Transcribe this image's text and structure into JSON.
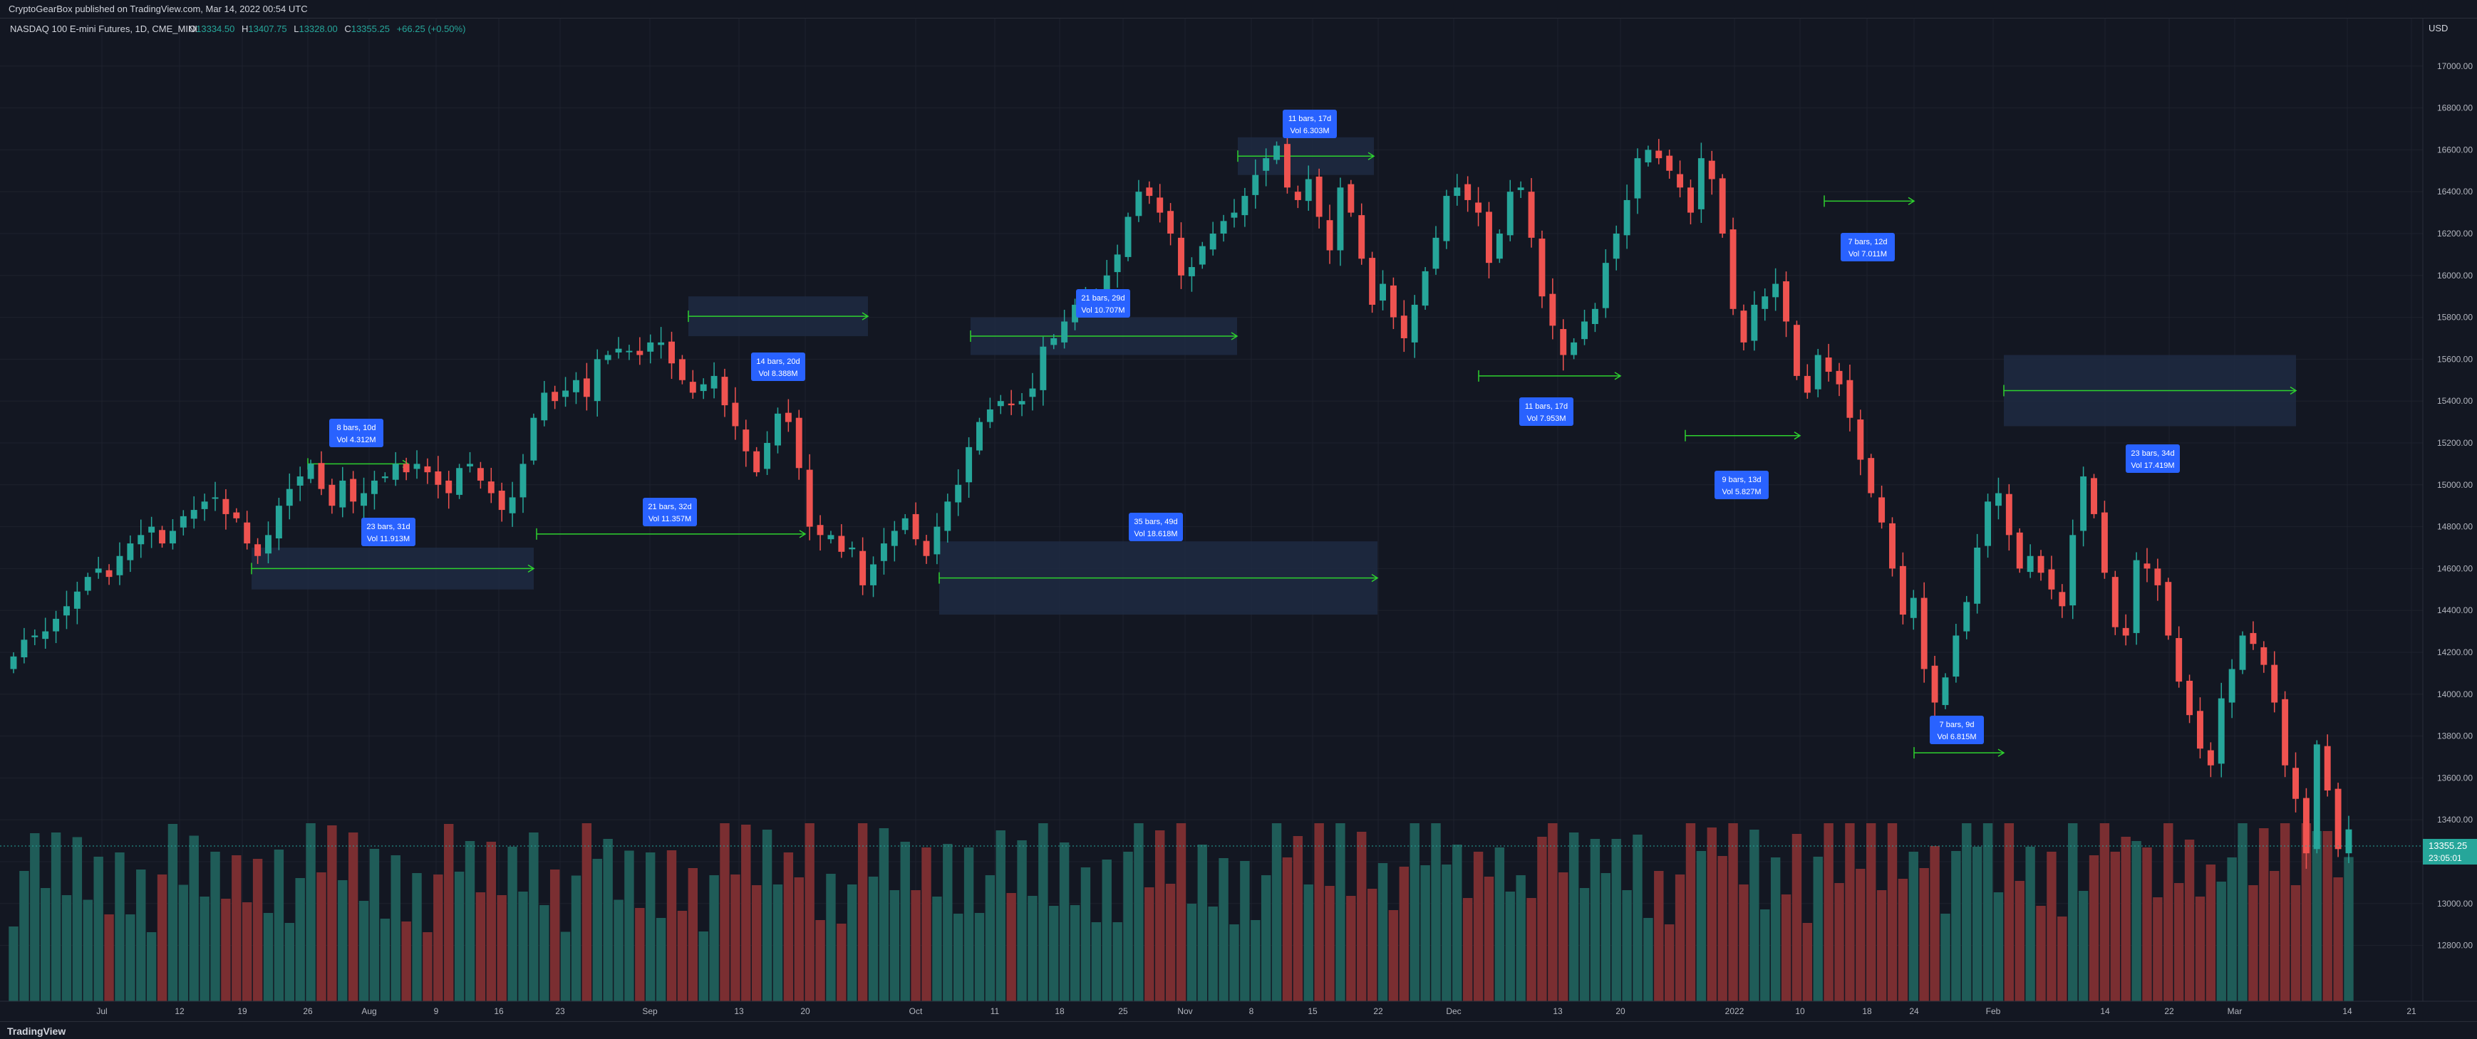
{
  "publisher_line": "CryptoGearBox published on TradingView.com, Mar 14, 2022 00:54 UTC",
  "footer": {
    "brand": "TradingView",
    "brand_icon": "tradingview-logo-icon"
  },
  "colors": {
    "background": "#131722",
    "up": "#26a69a",
    "down": "#ef5350",
    "vol_up": "#1f5c58",
    "vol_down": "#7a2e31",
    "measure_box": "#1e2a42",
    "measure_line": "#2ed12e",
    "label_bg": "#2962ff"
  },
  "chart_data": {
    "type": "candlestick",
    "title": "NASDAQ 100 E-mini Futures, 1D, CME_MINI",
    "ohlc_legend": {
      "o_label": "O",
      "o": "13334.50",
      "h_label": "H",
      "h": "13407.75",
      "l_label": "L",
      "l": "13328.00",
      "c_label": "C",
      "c": "13355.25",
      "change": "+66.25 (+0.50%)"
    },
    "price_axis": {
      "currency": "USD",
      "ylim": [
        12540,
        17200
      ],
      "ticks": [
        "12800.00",
        "13000.00",
        "13200.00",
        "13400.00",
        "13600.00",
        "13800.00",
        "14000.00",
        "14200.00",
        "14400.00",
        "14600.00",
        "14800.00",
        "15000.00",
        "15200.00",
        "15400.00",
        "15600.00",
        "15800.00",
        "16000.00",
        "16200.00",
        "16400.00",
        "16600.00",
        "16800.00",
        "17000.00"
      ],
      "last_price": "13355.25",
      "countdown": "23:05:01"
    },
    "time_axis": {
      "ticks": [
        "Jul",
        "12",
        "19",
        "26",
        "Aug",
        "9",
        "16",
        "23",
        "Sep",
        "13",
        "20",
        "Oct",
        "11",
        "18",
        "25",
        "Nov",
        "8",
        "15",
        "22",
        "Dec",
        "13",
        "20",
        "2022",
        "10",
        "18",
        "24",
        "Feb",
        "14",
        "22",
        "Mar",
        "14",
        "21"
      ]
    },
    "closes": [
      14180,
      14260,
      14280,
      14300,
      14360,
      14420,
      14490,
      14560,
      14600,
      14560,
      14660,
      14720,
      14760,
      14800,
      14720,
      14780,
      14850,
      14880,
      14920,
      14940,
      14860,
      14840,
      14720,
      14660,
      14760,
      14900,
      14980,
      15040,
      15100,
      14980,
      14900,
      15020,
      14920,
      14960,
      15020,
      15040,
      15100,
      15060,
      15100,
      15060,
      15000,
      14960,
      15080,
      15100,
      15020,
      14960,
      14880,
      14940,
      15100,
      15320,
      15440,
      15400,
      15450,
      15500,
      15420,
      15600,
      15620,
      15650,
      15640,
      15620,
      15680,
      15680,
      15580,
      15500,
      15440,
      15480,
      15520,
      15380,
      15280,
      15160,
      15060,
      15200,
      15340,
      15300,
      15080,
      14800,
      14760,
      14760,
      14680,
      14700,
      14520,
      14620,
      14720,
      14780,
      14840,
      14740,
      14660,
      14800,
      14920,
      15000,
      15180,
      15300,
      15360,
      15400,
      15380,
      15400,
      15460,
      15660,
      15700,
      15780,
      15860,
      15880,
      15900,
      16000,
      16100,
      16280,
      16400,
      16380,
      16300,
      16200,
      16000,
      16040,
      16140,
      16200,
      16260,
      16300,
      16380,
      16480,
      16560,
      16620,
      16420,
      16360,
      16460,
      16280,
      16120,
      16420,
      16300,
      16080,
      15860,
      15960,
      15800,
      15700,
      15860,
      16020,
      16180,
      16380,
      16420,
      16360,
      16300,
      16060,
      16200,
      16400,
      16420,
      16180,
      15900,
      15760,
      15620,
      15680,
      15780,
      15840,
      16060,
      16200,
      16360,
      16560,
      16600,
      16560,
      16500,
      16420,
      16300,
      16560,
      16460,
      16200,
      15840,
      15680,
      15860,
      15900,
      15960,
      15780,
      15520,
      15440,
      15620,
      15540,
      15480,
      15320,
      15120,
      14960,
      14820,
      14600,
      14380,
      14460,
      14120,
      13960,
      14080,
      14280,
      14440,
      14700,
      14920,
      14960,
      14760,
      14600,
      14660,
      14580,
      14500,
      14420,
      14760,
      15040,
      14860,
      14580,
      14320,
      14280,
      14640,
      14600,
      14520,
      14280,
      14060,
      13900,
      13740,
      13660,
      13980,
      14120,
      14280,
      14240,
      14140,
      13960,
      13660,
      13500,
      13240,
      13760,
      13540,
      13260,
      13354
    ]
  },
  "measurements": [
    {
      "line1": "8 bars, 10d",
      "line2": "Vol 4.312M"
    },
    {
      "line1": "23 bars, 31d",
      "line2": "Vol 11.913M"
    },
    {
      "line1": "21 bars, 32d",
      "line2": "Vol 11.357M"
    },
    {
      "line1": "14 bars, 20d",
      "line2": "Vol 8.388M"
    },
    {
      "line1": "35 bars, 49d",
      "line2": "Vol 18.618M"
    },
    {
      "line1": "21 bars, 29d",
      "line2": "Vol 10.707M"
    },
    {
      "line1": "11 bars, 17d",
      "line2": "Vol 6.303M"
    },
    {
      "line1": "11 bars, 17d",
      "line2": "Vol 7.953M"
    },
    {
      "line1": "9 bars, 13d",
      "line2": "Vol 5.827M"
    },
    {
      "line1": "7 bars, 12d",
      "line2": "Vol 7.011M"
    },
    {
      "line1": "7 bars, 9d",
      "line2": "Vol 6.815M"
    },
    {
      "line1": "23 bars, 34d",
      "line2": "Vol 17.419M"
    }
  ]
}
